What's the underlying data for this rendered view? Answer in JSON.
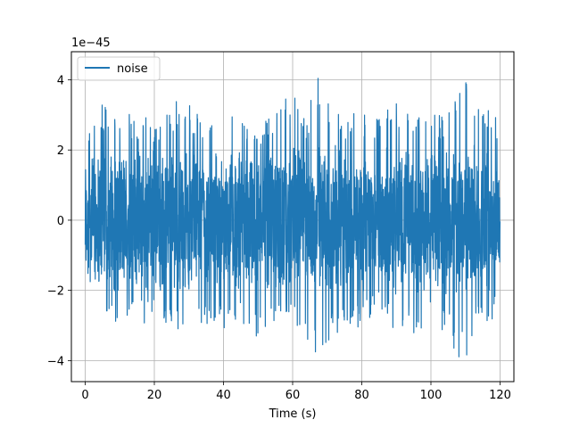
{
  "chart_data": {
    "type": "line",
    "title": "",
    "xlabel": "Time (s)",
    "ylabel": "",
    "offset_text": "1e−45",
    "xlim": [
      -4,
      124
    ],
    "ylim": [
      -4.6,
      4.8
    ],
    "x_ticks": [
      0,
      20,
      40,
      60,
      80,
      100,
      120
    ],
    "x_tick_labels": [
      "0",
      "20",
      "40",
      "60",
      "80",
      "100",
      "120"
    ],
    "y_ticks": [
      -4,
      -2,
      0,
      2,
      4
    ],
    "y_tick_labels": [
      "−4",
      "−2",
      "0",
      "2",
      "4"
    ],
    "grid": true,
    "legend_placement": "top-left",
    "series": [
      {
        "name": "noise",
        "color": "#1f77b4",
        "x_start": 0,
        "x_end": 120,
        "typical_amplitude": 2.2,
        "envelope_max": [
          [
            0,
            2.6
          ],
          [
            5,
            3.3
          ],
          [
            8,
            3.2
          ],
          [
            13,
            3.1
          ],
          [
            20,
            2.9
          ],
          [
            27,
            3.5
          ],
          [
            34,
            3.0
          ],
          [
            40,
            3.1
          ],
          [
            45,
            3.0
          ],
          [
            50,
            2.6
          ],
          [
            54,
            3.1
          ],
          [
            60,
            3.9
          ],
          [
            64,
            3.0
          ],
          [
            68,
            4.4
          ],
          [
            72,
            3.0
          ],
          [
            80,
            3.2
          ],
          [
            86,
            3.0
          ],
          [
            90,
            3.4
          ],
          [
            96,
            3.2
          ],
          [
            100,
            3.3
          ],
          [
            104,
            2.9
          ],
          [
            110,
            4.0
          ],
          [
            115,
            3.6
          ],
          [
            120,
            2.9
          ]
        ],
        "envelope_min": [
          [
            0,
            -2.9
          ],
          [
            5,
            -3.2
          ],
          [
            10,
            -3.0
          ],
          [
            13,
            -3.1
          ],
          [
            20,
            -2.9
          ],
          [
            27,
            -3.2
          ],
          [
            32,
            -3.0
          ],
          [
            40,
            -3.1
          ],
          [
            44,
            -2.9
          ],
          [
            50,
            -3.6
          ],
          [
            52,
            -3.3
          ],
          [
            58,
            -3.0
          ],
          [
            63,
            -3.2
          ],
          [
            68,
            -4.0
          ],
          [
            72,
            -3.3
          ],
          [
            80,
            -3.0
          ],
          [
            85,
            -2.6
          ],
          [
            90,
            -3.2
          ],
          [
            96,
            -3.3
          ],
          [
            100,
            -3.0
          ],
          [
            105,
            -3.5
          ],
          [
            110,
            -4.2
          ],
          [
            114,
            -3.1
          ],
          [
            120,
            -2.8
          ]
        ]
      }
    ]
  }
}
